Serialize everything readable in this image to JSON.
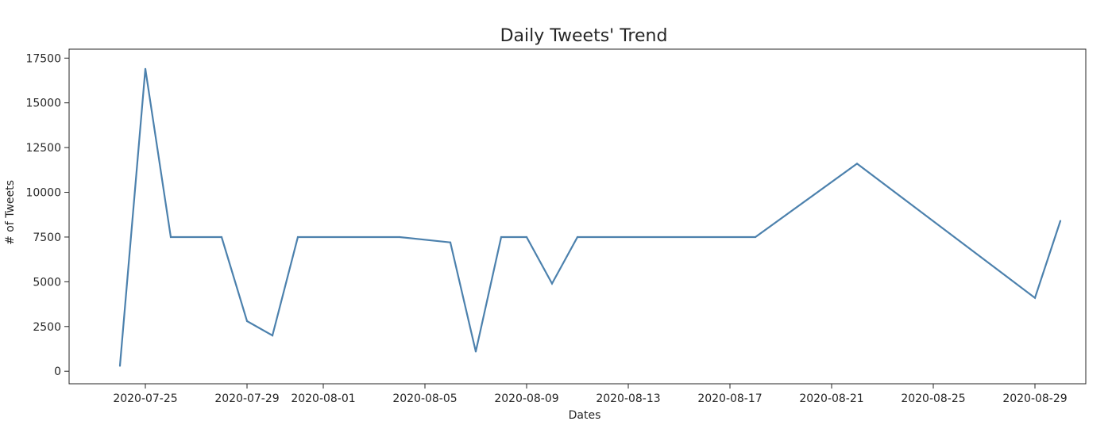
{
  "chart_data": {
    "type": "line",
    "title": "Daily Tweets' Trend",
    "xlabel": "Dates",
    "ylabel": "# of Tweets",
    "ylim": [
      -700,
      18000
    ],
    "xlim": [
      "2020-07-22",
      "2020-08-31"
    ],
    "grid": false,
    "legend": "none",
    "line_color": "#4c81ad",
    "x_ticks": [
      "2020-07-25",
      "2020-07-29",
      "2020-08-01",
      "2020-08-05",
      "2020-08-09",
      "2020-08-13",
      "2020-08-17",
      "2020-08-21",
      "2020-08-25",
      "2020-08-29"
    ],
    "y_ticks": [
      0,
      2500,
      5000,
      7500,
      10000,
      12500,
      15000,
      17500
    ],
    "series": [
      {
        "x": [
          "2020-07-24",
          "2020-07-25",
          "2020-07-26",
          "2020-07-28",
          "2020-07-29",
          "2020-07-30",
          "2020-07-31",
          "2020-08-04",
          "2020-08-06",
          "2020-08-07",
          "2020-08-08",
          "2020-08-09",
          "2020-08-10",
          "2020-08-11",
          "2020-08-18",
          "2020-08-22",
          "2020-08-29",
          "2020-08-30"
        ],
        "values": [
          300,
          16900,
          7500,
          7500,
          2800,
          2000,
          7500,
          7500,
          7200,
          1100,
          7500,
          7500,
          4900,
          7500,
          7500,
          11600,
          4100,
          8400
        ]
      }
    ]
  }
}
